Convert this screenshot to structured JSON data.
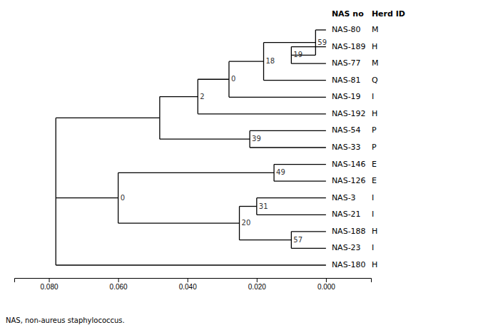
{
  "chart_data": {
    "type": "dendrogram",
    "column_headers": [
      "NAS no",
      "Herd ID"
    ],
    "footnote": "NAS, non-aureus staphylococcus.",
    "color": "#000000",
    "xlim": [
      0.09,
      -0.013
    ],
    "xticks": [
      {
        "value": 0.08,
        "label": "0.080"
      },
      {
        "value": 0.06,
        "label": "0.060"
      },
      {
        "value": 0.04,
        "label": "0.040"
      },
      {
        "value": 0.02,
        "label": "0.020"
      },
      {
        "value": 0,
        "label": "0.000"
      }
    ],
    "tree": {
      "x": 0.078,
      "children": [
        {
          "x": 0.048,
          "children": [
            {
              "x": 0.037,
              "bootstrap": 2,
              "children": [
                {
                  "x": 0.028,
                  "bootstrap": 0,
                  "children": [
                    {
                      "x": 0.018,
                      "bootstrap": 18,
                      "children": [
                        {
                          "x": 0.003,
                          "bootstrap": 59,
                          "children": [
                            {
                              "name": "NAS-80",
                              "herd": "M",
                              "x": 0
                            },
                            {
                              "x": 0.01,
                              "bootstrap": 19,
                              "children": [
                                {
                                  "name": "NAS-189",
                                  "herd": "H",
                                  "x": 0
                                },
                                {
                                  "name": "NAS-77",
                                  "herd": "M",
                                  "x": 0
                                }
                              ]
                            }
                          ]
                        },
                        {
                          "name": "NAS-81",
                          "herd": "Q",
                          "x": 0
                        }
                      ]
                    },
                    {
                      "name": "NAS-19",
                      "herd": "I",
                      "x": 0
                    }
                  ]
                },
                {
                  "name": "NAS-192",
                  "herd": "H",
                  "x": 0
                }
              ]
            },
            {
              "x": 0.022,
              "bootstrap": 39,
              "children": [
                {
                  "name": "NAS-54",
                  "herd": "P",
                  "x": 0
                },
                {
                  "name": "NAS-33",
                  "herd": "P",
                  "x": 0
                }
              ]
            }
          ]
        },
        {
          "x": 0.06,
          "bootstrap": 0,
          "children": [
            {
              "x": 0.015,
              "bootstrap": 49,
              "children": [
                {
                  "name": "NAS-146",
                  "herd": "E",
                  "x": 0
                },
                {
                  "name": "NAS-126",
                  "herd": "E",
                  "x": 0
                }
              ]
            },
            {
              "x": 0.025,
              "bootstrap": 20,
              "children": [
                {
                  "x": 0.02,
                  "bootstrap": 31,
                  "children": [
                    {
                      "name": "NAS-3",
                      "herd": "I",
                      "x": 0
                    },
                    {
                      "name": "NAS-21",
                      "herd": "I",
                      "x": 0
                    }
                  ]
                },
                {
                  "x": 0.01,
                  "bootstrap": 57,
                  "children": [
                    {
                      "name": "NAS-188",
                      "herd": "H",
                      "x": 0
                    },
                    {
                      "name": "NAS-23",
                      "herd": "I",
                      "x": 0
                    }
                  ]
                }
              ]
            }
          ]
        },
        {
          "name": "NAS-180",
          "herd": "H",
          "x": 0
        }
      ]
    }
  }
}
